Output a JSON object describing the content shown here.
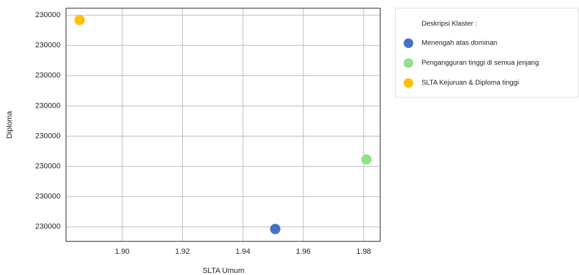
{
  "chart_data": {
    "type": "scatter",
    "xlabel": "SLTA Umum",
    "ylabel": "Diploma",
    "legend_title": "Deskripsi Klaster :",
    "legend": "right",
    "grid": true,
    "xlim": [
      1.8814,
      1.9855
    ],
    "xticks": [
      {
        "value": 1.9,
        "label": "1.90"
      },
      1.92,
      1.94,
      1.96,
      1.98
    ],
    "ylim": [
      229999.652,
      230000.423
    ],
    "yticks": [
      {
        "value": 229999.7,
        "label": "230000"
      },
      {
        "value": 229999.8,
        "label": "230000"
      },
      {
        "value": 229999.9,
        "label": "230000"
      },
      {
        "value": 230000.0,
        "label": "230000"
      },
      {
        "value": 230000.1,
        "label": "230000"
      },
      {
        "value": 230000.2,
        "label": "230000"
      },
      {
        "value": 230000.3,
        "label": "230000"
      },
      {
        "value": 230000.4,
        "label": "230000"
      }
    ],
    "series": [
      {
        "name": "Menengah atas dominan",
        "color": "#4472c4",
        "x": [
          1.9507
        ],
        "values": [
          229999.693
        ]
      },
      {
        "name": "Pengangguran tinggi di semua jenjang",
        "color": "#92e08c",
        "x": [
          1.9809
        ],
        "values": [
          229999.923
        ]
      },
      {
        "name": "SLTA Kejuruan & Diploma tinggi",
        "color": "#ffc000",
        "x": [
          1.8859
        ],
        "values": [
          230000.384
        ]
      }
    ]
  }
}
